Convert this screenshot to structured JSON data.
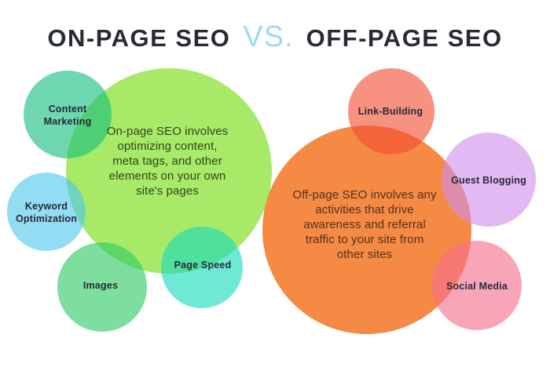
{
  "title": {
    "left": "ON-PAGE SEO",
    "vs": "VS.",
    "right": "OFF-PAGE SEO"
  },
  "on_page": {
    "description": "On-page SEO involves\noptimizing content,\nmeta tags, and other\nelements on your own\nsite's pages",
    "circle_color": "#a8ea67",
    "satellites": [
      {
        "label": "Content\nMarketing",
        "color": "#5fd8ab"
      },
      {
        "label": "Keyword\nOptimization",
        "color": "#92dcf4"
      },
      {
        "label": "Images",
        "color": "#7dde9f"
      },
      {
        "label": "Page Speed",
        "color": "#6fe8d6"
      }
    ]
  },
  "off_page": {
    "description": "Off-page SEO involves any\nactivities that drive\nawareness and referral\ntraffic to your site from\nother sites",
    "circle_color": "#f58a45",
    "satellites": [
      {
        "label": "Link-Building",
        "color": "#f79280"
      },
      {
        "label": "Guest Blogging",
        "color": "#e2b9f2"
      },
      {
        "label": "Social Media",
        "color": "#f9a5b8"
      }
    ]
  },
  "accent_colors": {
    "title_text": "#272b33",
    "vs_text": "#a0daec",
    "label_text": "#262b36",
    "overlap_link_building": "#f0592b"
  }
}
